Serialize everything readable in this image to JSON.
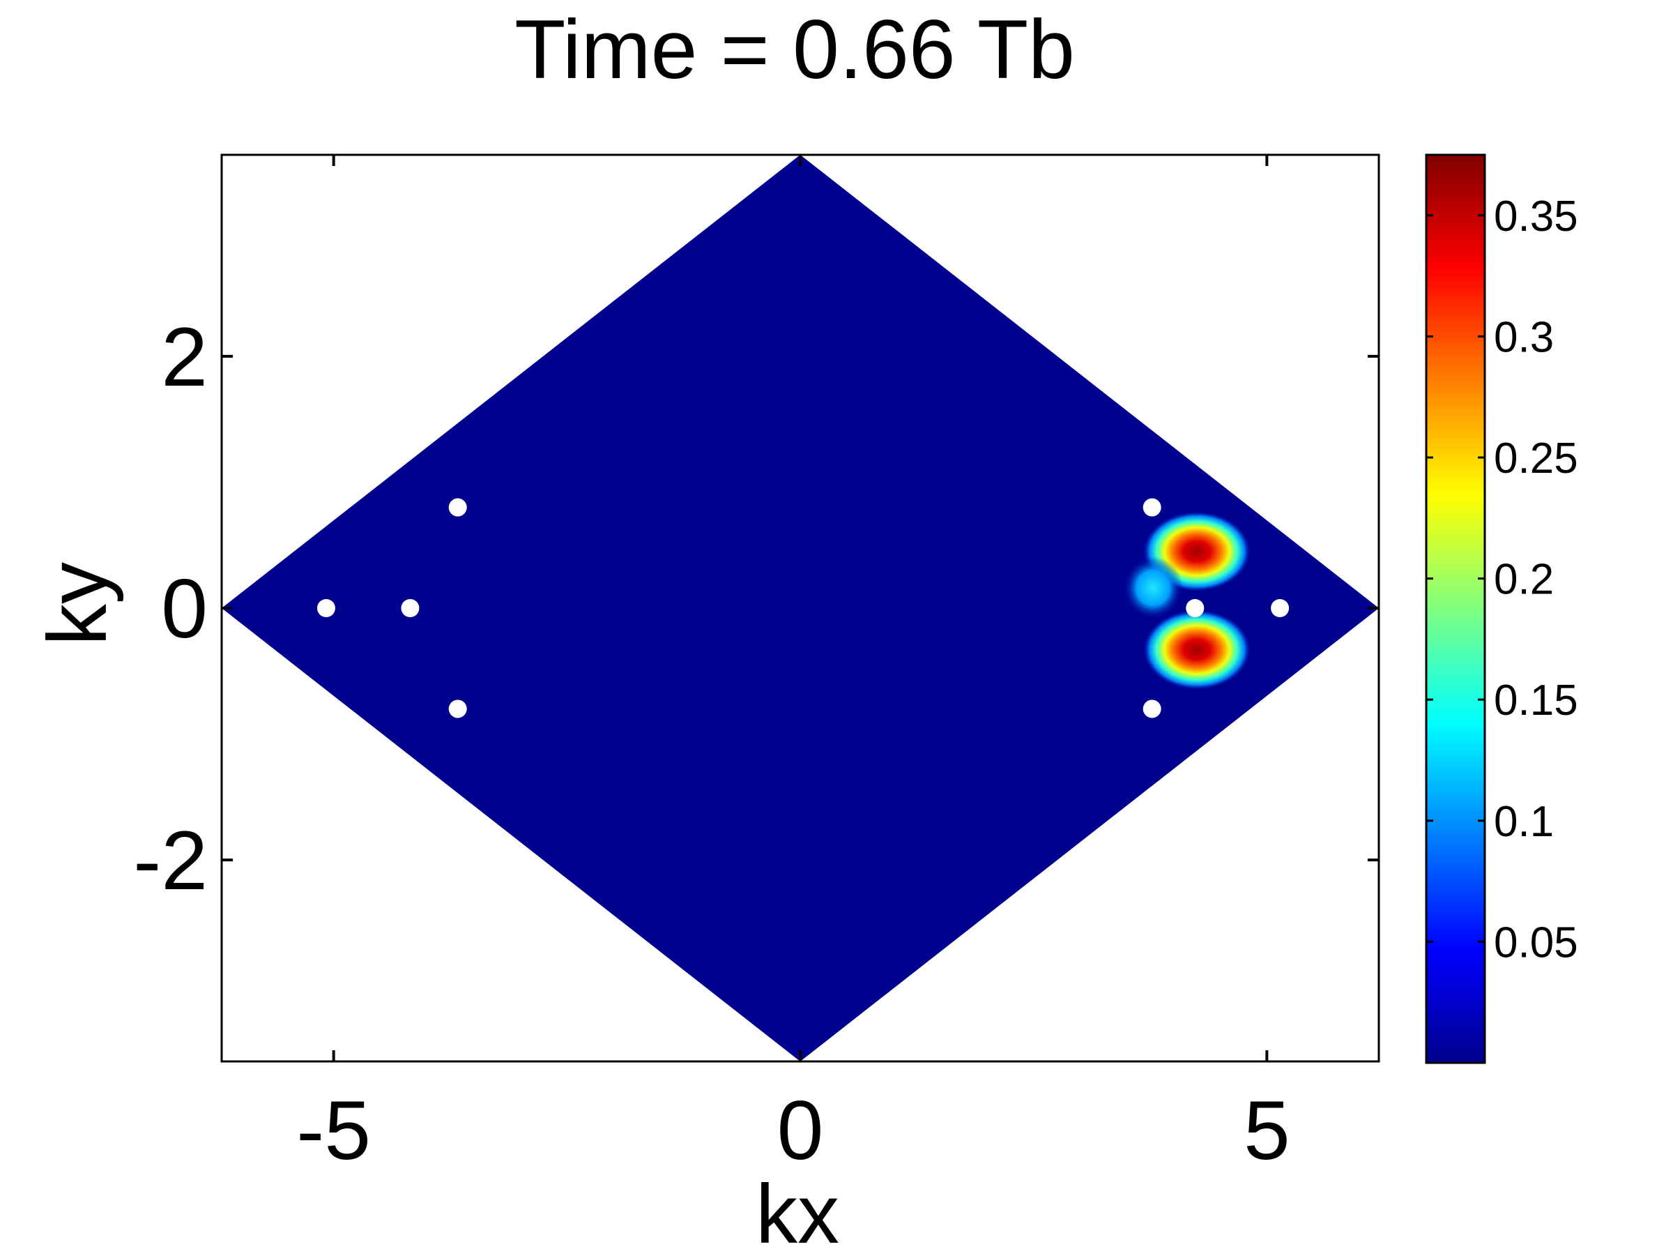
{
  "chart_data": {
    "type": "heatmap",
    "title": "Time = 0.66 Tb",
    "xlabel": "kx",
    "ylabel": "ky",
    "xlim": [
      -6.2,
      6.2
    ],
    "ylim": [
      -3.6,
      3.6
    ],
    "x_ticks": [
      -5,
      0,
      5
    ],
    "y_ticks": [
      -2,
      0,
      2
    ],
    "x_tick_labels": [
      "-5",
      "0",
      "5"
    ],
    "y_tick_labels": [
      "-2",
      "0",
      "2"
    ],
    "grid": false,
    "region": {
      "shape": "diamond",
      "vertices": [
        [
          -6.2,
          0
        ],
        [
          0,
          3.6
        ],
        [
          6.2,
          0
        ],
        [
          0,
          -3.6
        ]
      ],
      "fill_color": "#00008f"
    },
    "hotspots": [
      {
        "x": 4.25,
        "y": 0.45,
        "value": 0.37
      },
      {
        "x": 4.25,
        "y": -0.33,
        "value": 0.37
      },
      {
        "x": 3.78,
        "y": 0.16,
        "value": 0.14
      }
    ],
    "markers": [
      {
        "x": -5.08,
        "y": 0
      },
      {
        "x": -4.18,
        "y": 0
      },
      {
        "x": -3.67,
        "y": 0.8
      },
      {
        "x": -3.67,
        "y": -0.8
      },
      {
        "x": 3.77,
        "y": 0.8
      },
      {
        "x": 3.77,
        "y": -0.8
      },
      {
        "x": 4.23,
        "y": 0
      },
      {
        "x": 5.14,
        "y": 0
      }
    ],
    "marker_color": "#ffffff",
    "colorbar": {
      "colormap": "jet",
      "range": [
        0,
        0.375
      ],
      "ticks": [
        0.05,
        0.1,
        0.15,
        0.2,
        0.25,
        0.3,
        0.35
      ],
      "tick_labels": [
        "0.05",
        "0.1",
        "0.15",
        "0.2",
        "0.25",
        "0.3",
        "0.35"
      ]
    }
  }
}
